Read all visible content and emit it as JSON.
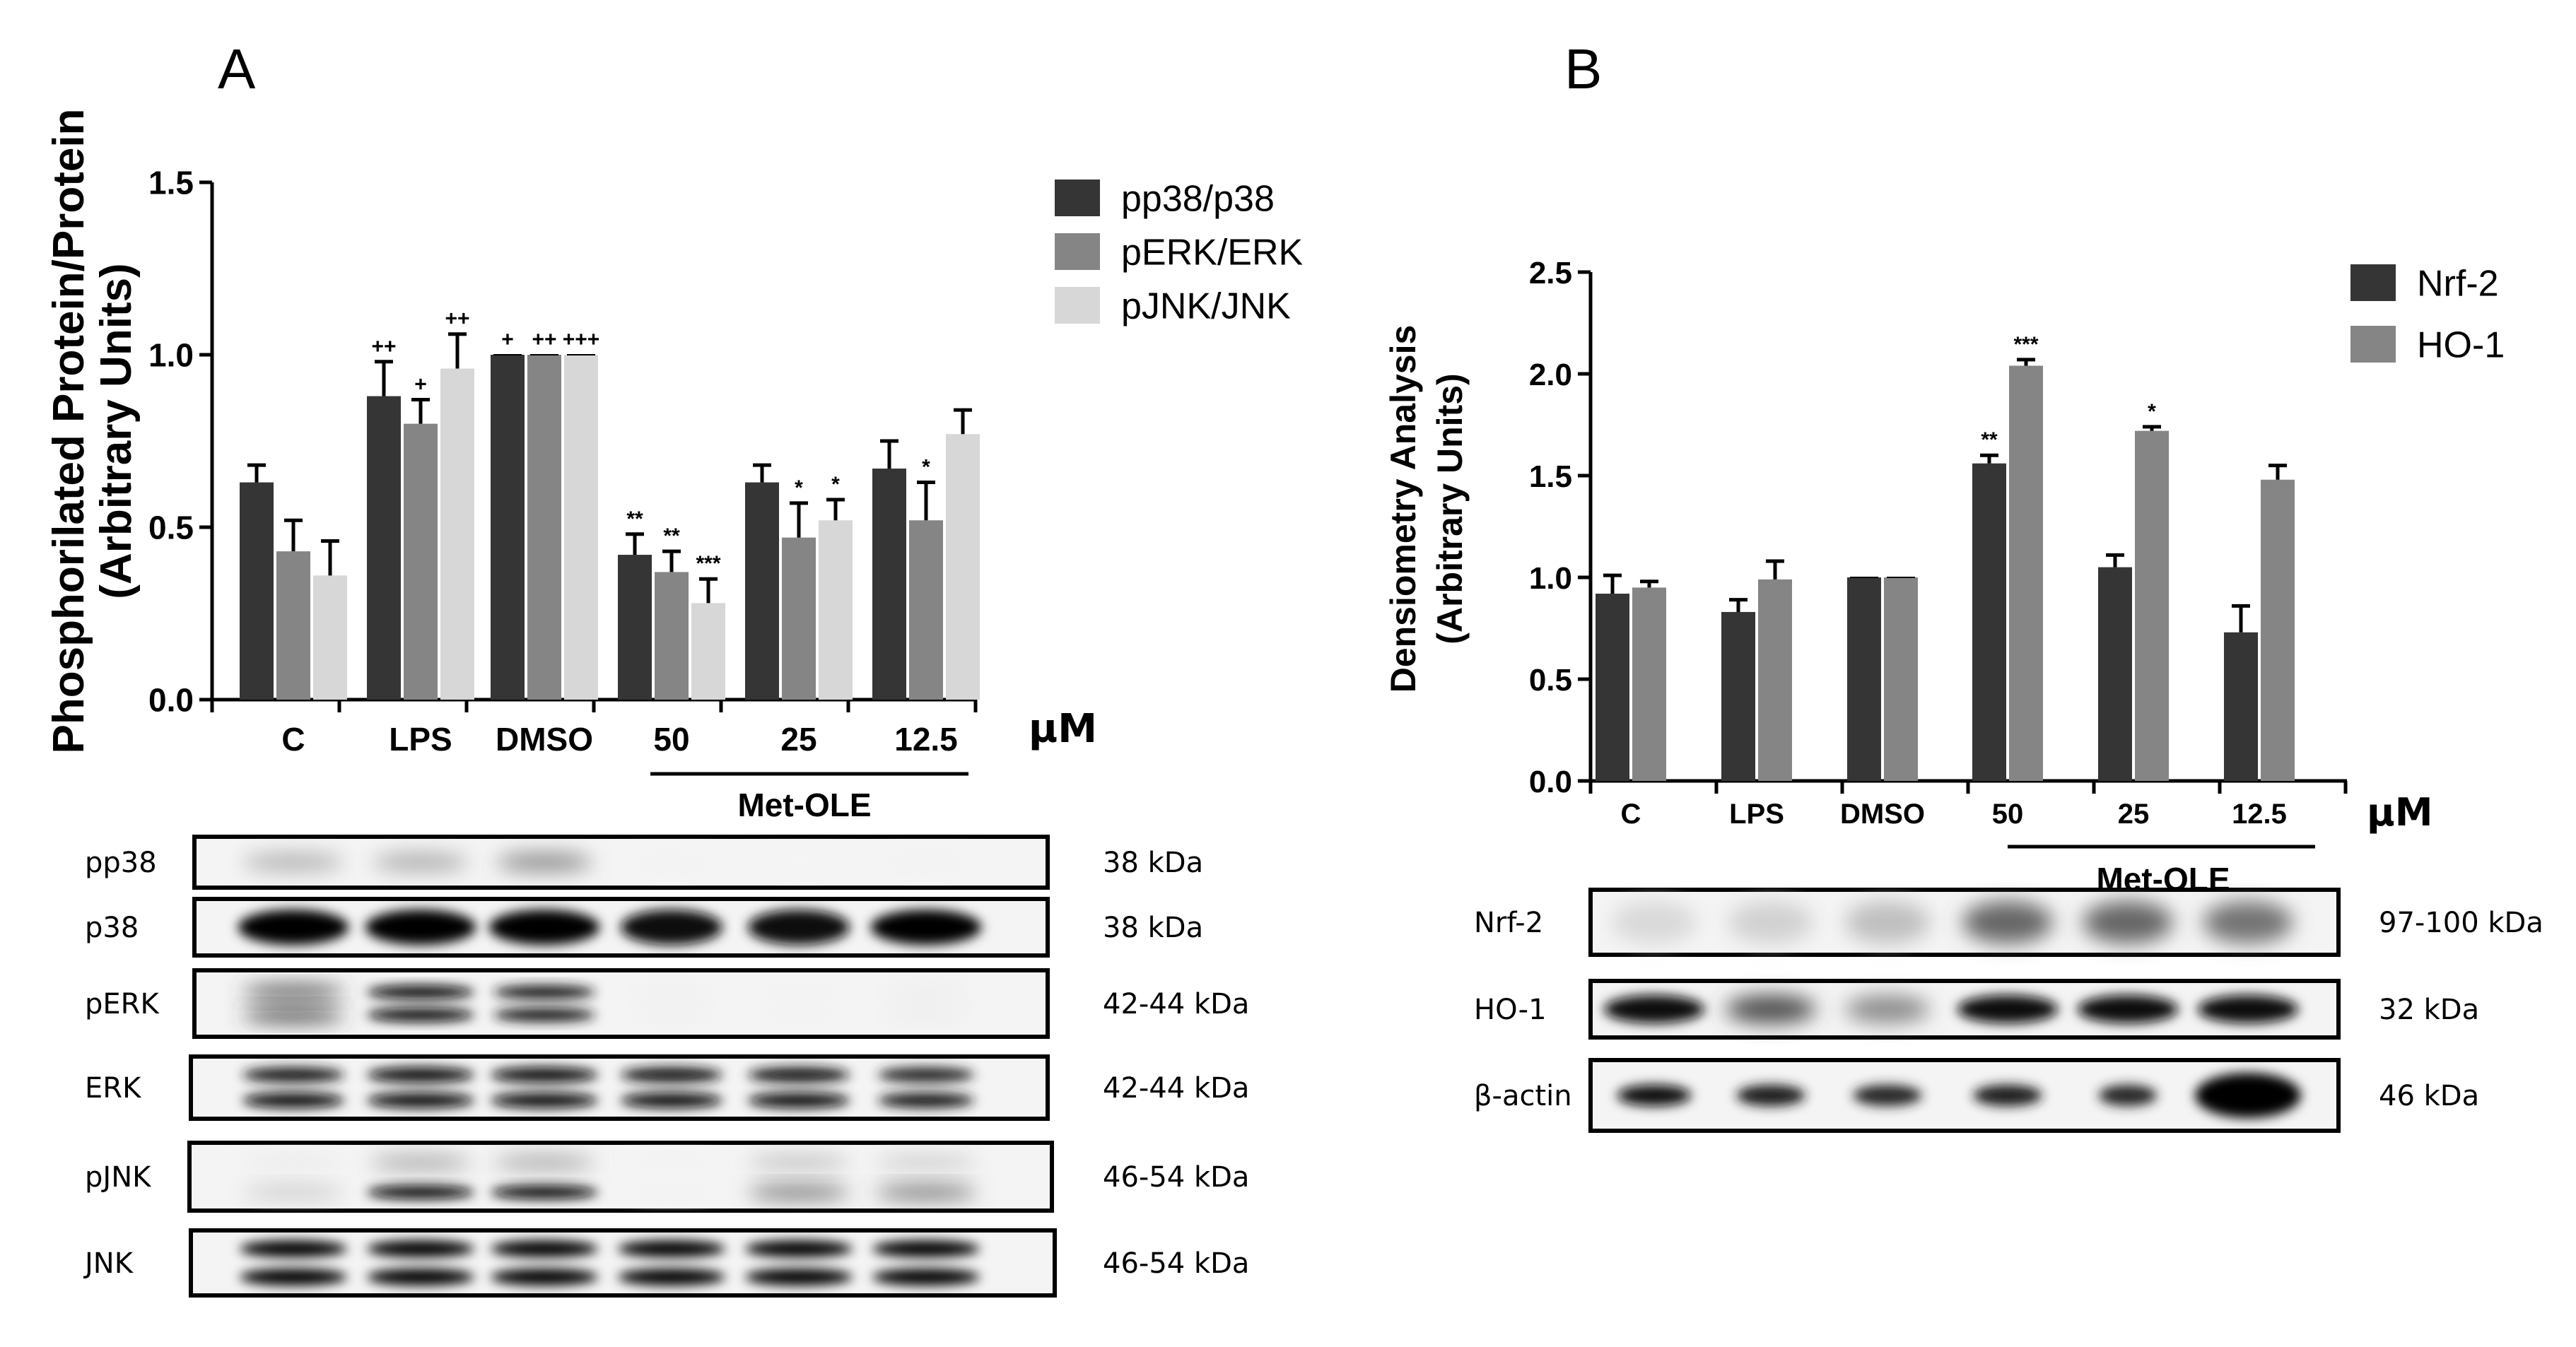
{
  "chart_data": [
    {
      "panel_label": "A",
      "type": "bar",
      "ylabel": [
        "Phosphorilated Protein/Protein",
        "(Arbitrary Units)"
      ],
      "xlabel": "",
      "ylim": [
        0,
        1.5
      ],
      "yticks": [
        "0.0",
        "0.5",
        "1.0",
        "1.5"
      ],
      "categories": [
        "C",
        "LPS",
        "DMSO",
        "50",
        "25",
        "12.5"
      ],
      "unit": "µM",
      "group_label": "Met-OLE",
      "legend_position": "top-right",
      "series": [
        {
          "name": "pp38/p38",
          "color": "#353535",
          "values": [
            0.63,
            0.88,
            1.0,
            0.42,
            0.63,
            0.67
          ],
          "errors": [
            0.05,
            0.1,
            0,
            0.06,
            0.05,
            0.08
          ],
          "annotations": [
            "",
            "++",
            "+",
            "**",
            "",
            ""
          ]
        },
        {
          "name": "pERK/ERK",
          "color": "#858585",
          "values": [
            0.43,
            0.8,
            1.0,
            0.37,
            0.47,
            0.52
          ],
          "errors": [
            0.09,
            0.07,
            0,
            0.06,
            0.1,
            0.11
          ],
          "annotations": [
            "",
            "+",
            "++",
            "**",
            "*",
            "*"
          ]
        },
        {
          "name": "pJNK/JNK",
          "color": "#d7d7d7",
          "values": [
            0.36,
            0.96,
            1.0,
            0.28,
            0.52,
            0.77
          ],
          "errors": [
            0.1,
            0.1,
            0,
            0.07,
            0.06,
            0.07
          ],
          "annotations": [
            "",
            "++",
            "+++",
            "***",
            "*",
            ""
          ]
        }
      ],
      "blots": [
        {
          "label": "pp38",
          "size": "38 kDa"
        },
        {
          "label": "p38",
          "size": "38 kDa"
        },
        {
          "label": "pERK",
          "size": "42-44 kDa"
        },
        {
          "label": "ERK",
          "size": "42-44 kDa"
        },
        {
          "label": "pJNK",
          "size": "46-54 kDa"
        },
        {
          "label": "JNK",
          "size": "46-54 kDa"
        }
      ]
    },
    {
      "panel_label": "B",
      "type": "bar",
      "ylabel": [
        "Densiometry Analysis",
        "(Arbitrary Units)"
      ],
      "xlabel": "",
      "ylim": [
        0,
        2.5
      ],
      "yticks": [
        "0.0",
        "0.5",
        "1.0",
        "1.5",
        "2.0",
        "2.5"
      ],
      "categories": [
        "C",
        "LPS",
        "DMSO",
        "50",
        "25",
        "12.5"
      ],
      "unit": "µM",
      "group_label": "Met-OLE",
      "legend_position": "top-right",
      "series": [
        {
          "name": "Nrf-2",
          "color": "#353535",
          "values": [
            0.92,
            0.83,
            1.0,
            1.56,
            1.05,
            0.73
          ],
          "errors": [
            0.09,
            0.06,
            0,
            0.04,
            0.06,
            0.13
          ],
          "annotations": [
            "",
            "",
            "",
            "**",
            "",
            ""
          ]
        },
        {
          "name": "HO-1",
          "color": "#858585",
          "values": [
            0.95,
            0.99,
            1.0,
            2.04,
            1.72,
            1.48
          ],
          "errors": [
            0.03,
            0.09,
            0,
            0.03,
            0.02,
            0.07
          ],
          "annotations": [
            "",
            "",
            "",
            "***",
            "*",
            ""
          ]
        }
      ],
      "blots": [
        {
          "label": "Nrf-2",
          "size": "97-100 kDa"
        },
        {
          "label": "HO-1",
          "size": "32 kDa"
        },
        {
          "label": "β-actin",
          "size": "46 kDa"
        }
      ]
    }
  ]
}
